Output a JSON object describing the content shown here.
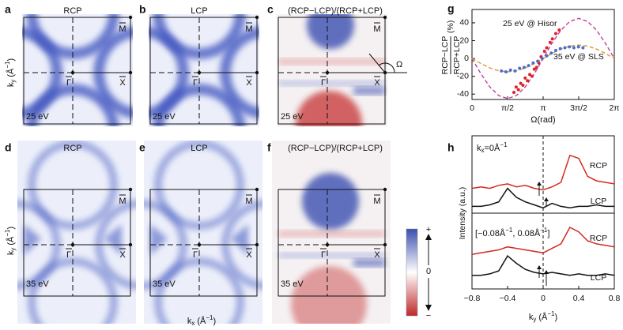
{
  "panels": [
    {
      "letter": "a",
      "title": "RCP",
      "energy": "25 eV"
    },
    {
      "letter": "b",
      "title": "LCP",
      "energy": "25 eV"
    },
    {
      "letter": "c",
      "title": "(RCP−LCP)/(RCP+LCP)",
      "energy": "25 eV"
    },
    {
      "letter": "d",
      "title": "RCP",
      "energy": "35 eV"
    },
    {
      "letter": "e",
      "title": "LCP",
      "energy": "35 eV"
    },
    {
      "letter": "f",
      "title": "(RCP−LCP)/(RCP+LCP)",
      "energy": "35 eV"
    }
  ],
  "points": {
    "M": "M",
    "G": "Γ",
    "X": "X"
  },
  "angle": "Ω",
  "ky_label": [
    {
      "text": "k"
    },
    {
      "text": "y",
      "shift": "sub"
    },
    {
      "text": " (Å"
    },
    {
      "text": "−1",
      "shift": "sup"
    },
    {
      "text": ")"
    }
  ],
  "kx_label": [
    {
      "text": "k"
    },
    {
      "text": "x",
      "shift": "sub"
    },
    {
      "text": " (Å"
    },
    {
      "text": "−1",
      "shift": "sup"
    },
    {
      "text": ")"
    }
  ],
  "colorbar": {
    "top": "+",
    "mid": "0",
    "bottom": "−"
  },
  "chart_data": [
    {
      "type": "scatter",
      "letter": "g",
      "ylabel": {
        "numerator": "RCP−LCP",
        "denominator": "RCP+LCP",
        "unit": "(%)"
      },
      "xlabel": "Ω(rad)",
      "xlim": [
        0,
        6.2832
      ],
      "xticks": [
        0,
        {
          "value": 1.5708,
          "label": "π/2"
        },
        {
          "value": 3.1416,
          "label": "π"
        },
        {
          "value": 4.7124,
          "label": "3π/2"
        },
        {
          "value": 6.2832,
          "label": "2π"
        }
      ],
      "ylim": [
        -46,
        55
      ],
      "yticks": [
        -40,
        -20,
        0,
        20,
        40
      ],
      "series": [
        {
          "color": "#c0409a",
          "dash": true,
          "x": [
            0,
            0.393,
            0.785,
            1.178,
            1.571,
            1.963,
            2.356,
            2.749,
            3.142,
            3.534,
            3.927,
            4.32,
            4.712,
            5.105,
            5.498,
            5.89,
            6.283
          ],
          "values": [
            0,
            -17.2,
            -31.8,
            -41.6,
            -45,
            -41.6,
            -31.8,
            -17.2,
            0,
            17.2,
            31.8,
            41.6,
            45,
            41.6,
            31.8,
            17.2,
            0
          ]
        },
        {
          "color": "#d89a30",
          "dash": true,
          "x": [
            0,
            0.393,
            0.785,
            1.178,
            1.571,
            1.963,
            2.356,
            2.749,
            3.142,
            3.534,
            3.927,
            4.32,
            4.712,
            5.105,
            5.498,
            5.89,
            6.283
          ],
          "values": [
            0,
            -5.7,
            -10.6,
            -13.9,
            -15,
            -13.9,
            -10.6,
            -5.7,
            0,
            5.7,
            10.6,
            13.9,
            15,
            13.9,
            10.6,
            5.7,
            0
          ]
        },
        {
          "name": "25 eV @ Hisor",
          "color": "#e0202a",
          "x": [
            1.85,
            1.95,
            2.05,
            2.15,
            2.25,
            2.35,
            2.45,
            2.55,
            2.65,
            2.75,
            2.85,
            2.95,
            3.05,
            3.2,
            3.3,
            3.45,
            3.55,
            3.7,
            3.85
          ],
          "values": [
            -38,
            -32,
            -35,
            -28,
            -30,
            -22,
            -25,
            -18,
            -20,
            -12,
            -10,
            -5,
            2,
            8,
            12,
            18,
            22,
            28,
            32
          ]
        },
        {
          "name": "35 eV @ SLS",
          "color": "#4a6fd0",
          "x": [
            1.3,
            1.5,
            1.7,
            1.9,
            2.1,
            2.3,
            2.5,
            2.7,
            2.9,
            3.1,
            3.3,
            3.5,
            3.7,
            3.9,
            4.1,
            4.3,
            4.5,
            4.7,
            4.9
          ],
          "values": [
            -14,
            -15,
            -13,
            -14,
            -11,
            -10,
            -8,
            -5,
            -3,
            0,
            3,
            6,
            9,
            11,
            12,
            13,
            12,
            13,
            12
          ]
        }
      ]
    },
    {
      "type": "line",
      "letter": "h",
      "xlabel": [
        {
          "text": "k"
        },
        {
          "text": "y",
          "shift": "sub"
        },
        {
          "text": " (Å"
        },
        {
          "text": "−1",
          "shift": "sup"
        },
        {
          "text": ")"
        }
      ],
      "ylabel": "Intensity (a.u.)",
      "annotations": [
        [
          {
            "text": "k"
          },
          {
            "text": "x",
            "shift": "sub"
          },
          {
            "text": "=0Å"
          },
          {
            "text": "−1",
            "shift": "sup"
          }
        ],
        [
          {
            "text": "[−0.08Å"
          },
          {
            "text": "−1",
            "shift": "sup"
          },
          {
            "text": ", 0.08Å"
          },
          {
            "text": "−1",
            "shift": "sup"
          },
          {
            "text": "]"
          }
        ]
      ],
      "xlim": [
        -0.8,
        0.8
      ],
      "xticks": [
        {
          "value": -0.8,
          "label": "−0.8"
        },
        {
          "value": -0.4,
          "label": "−0.4"
        },
        0,
        0.4,
        0.8
      ],
      "ylim": [
        0,
        100
      ],
      "x": [
        -0.8,
        -0.7,
        -0.6,
        -0.5,
        -0.4,
        -0.3,
        -0.2,
        -0.1,
        0,
        0.1,
        0.2,
        0.3,
        0.4,
        0.5,
        0.6,
        0.7,
        0.8
      ],
      "series": [
        {
          "name": "RCP",
          "color": "#d42a20",
          "values": [
            66,
            67,
            66,
            68,
            69,
            67,
            68,
            66,
            65,
            67,
            70,
            88,
            86,
            74,
            71,
            70,
            69
          ]
        },
        {
          "name": "LCP",
          "color": "#111111",
          "values": [
            54,
            54,
            55,
            57,
            66,
            60,
            57,
            55,
            53,
            56,
            54,
            53,
            54,
            54,
            55,
            54,
            54
          ]
        },
        {
          "name": "RCP",
          "color": "#d42a20",
          "values": [
            22,
            23,
            24,
            25,
            27,
            26,
            25,
            24,
            23,
            26,
            29,
            40,
            37,
            31,
            29,
            28,
            27
          ]
        },
        {
          "name": "LCP",
          "color": "#111111",
          "values": [
            8,
            8,
            9,
            11,
            21,
            16,
            12,
            10,
            9,
            10,
            9,
            8,
            9,
            8,
            8,
            9,
            8
          ]
        }
      ]
    }
  ]
}
